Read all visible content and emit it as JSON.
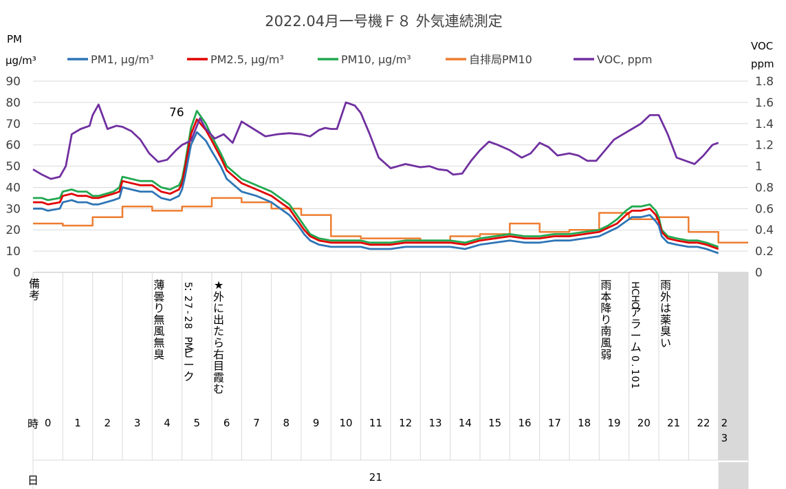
{
  "chart_data": {
    "type": "line",
    "title": "2022.04月一号機Ｆ８ 外気連続測定",
    "y_left": {
      "unit_line1": "PM",
      "unit_line2": "μg/m³",
      "ylim": [
        0,
        90
      ],
      "ticks": [
        "0",
        "10",
        "20",
        "30",
        "40",
        "50",
        "60",
        "70",
        "80",
        "90"
      ]
    },
    "y_right": {
      "unit_line1": "VOC",
      "unit_line2": "ppm",
      "ylim": [
        0,
        1.8
      ],
      "ticks": [
        "0",
        "0.2",
        "0.4",
        "0.6",
        "0.8",
        "1",
        "1.2",
        "1.4",
        "1.6",
        "1.8"
      ]
    },
    "grid": "horizontal",
    "legend_position": "top",
    "series": [
      {
        "name": "PM1, μg/m³",
        "color": "#2e75b6",
        "axis": "left",
        "x": [
          0,
          0.3,
          0.5,
          0.9,
          1.0,
          1.3,
          1.5,
          1.8,
          2.0,
          2.2,
          2.7,
          2.9,
          3.0,
          3.3,
          3.6,
          4.0,
          4.3,
          4.6,
          4.9,
          5.0,
          5.1,
          5.3,
          5.5,
          5.8,
          6.0,
          6.3,
          6.5,
          7.0,
          7.5,
          8.0,
          8.3,
          8.6,
          8.9,
          9.1,
          9.3,
          9.6,
          10.0,
          10.5,
          11.0,
          11.3,
          11.6,
          12.0,
          12.5,
          13.0,
          13.5,
          14.0,
          14.5,
          15.0,
          15.5,
          16.0,
          16.5,
          17.0,
          17.5,
          18.0,
          18.5,
          19.0,
          19.3,
          19.6,
          19.9,
          20.1,
          20.4,
          20.7,
          20.9,
          21.0,
          21.1,
          21.3,
          21.6,
          22.0,
          22.3,
          22.6,
          23.0
        ],
        "y": [
          30,
          30,
          29,
          30,
          33,
          34,
          33,
          33,
          32,
          32,
          34,
          35,
          40,
          39,
          38,
          38,
          35,
          34,
          36,
          39,
          45,
          60,
          66,
          62,
          57,
          50,
          44,
          38,
          36,
          33,
          30,
          27,
          22,
          18,
          15,
          13,
          12,
          12,
          12,
          11,
          11,
          11,
          12,
          12,
          12,
          12,
          11,
          13,
          14,
          15,
          14,
          14,
          15,
          15,
          16,
          17,
          19,
          21,
          24,
          26,
          26,
          27,
          24,
          22,
          17,
          14,
          13,
          12,
          12,
          11,
          9
        ]
      },
      {
        "name": "PM2.5, μg/m³",
        "color": "#e00000",
        "axis": "left",
        "x": [
          0,
          0.3,
          0.5,
          0.9,
          1.0,
          1.3,
          1.5,
          1.8,
          2.0,
          2.2,
          2.7,
          2.9,
          3.0,
          3.3,
          3.6,
          4.0,
          4.3,
          4.6,
          4.9,
          5.0,
          5.1,
          5.3,
          5.5,
          5.8,
          6.0,
          6.3,
          6.5,
          7.0,
          7.5,
          8.0,
          8.3,
          8.6,
          8.9,
          9.1,
          9.3,
          9.6,
          10.0,
          10.5,
          11.0,
          11.3,
          11.6,
          12.0,
          12.5,
          13.0,
          13.5,
          14.0,
          14.5,
          15.0,
          15.5,
          16.0,
          16.5,
          17.0,
          17.5,
          18.0,
          18.5,
          19.0,
          19.3,
          19.6,
          19.9,
          20.1,
          20.4,
          20.7,
          20.9,
          21.0,
          21.1,
          21.3,
          21.6,
          22.0,
          22.3,
          22.6,
          23.0
        ],
        "y": [
          33,
          33,
          32,
          33,
          36,
          37,
          36,
          36,
          35,
          35,
          37,
          38,
          43,
          42,
          41,
          41,
          38,
          37,
          39,
          42,
          49,
          65,
          72,
          67,
          62,
          54,
          48,
          42,
          39,
          36,
          33,
          30,
          24,
          20,
          17,
          15,
          14,
          14,
          14,
          13,
          13,
          13,
          14,
          14,
          14,
          14,
          13,
          15,
          16,
          17,
          16,
          16,
          17,
          17,
          18,
          19,
          21,
          23,
          27,
          29,
          29,
          30,
          27,
          24,
          19,
          16,
          15,
          14,
          14,
          13,
          11
        ]
      },
      {
        "name": "PM10, μg/m³",
        "color": "#21a84f",
        "axis": "left",
        "x": [
          0,
          0.3,
          0.5,
          0.9,
          1.0,
          1.3,
          1.5,
          1.8,
          2.0,
          2.2,
          2.7,
          2.9,
          3.0,
          3.3,
          3.6,
          4.0,
          4.3,
          4.6,
          4.9,
          5.0,
          5.1,
          5.3,
          5.5,
          5.8,
          6.0,
          6.3,
          6.5,
          7.0,
          7.5,
          8.0,
          8.3,
          8.6,
          8.9,
          9.1,
          9.3,
          9.6,
          10.0,
          10.5,
          11.0,
          11.3,
          11.6,
          12.0,
          12.5,
          13.0,
          13.5,
          14.0,
          14.5,
          15.0,
          15.5,
          16.0,
          16.5,
          17.0,
          17.5,
          18.0,
          18.5,
          19.0,
          19.3,
          19.6,
          19.9,
          20.1,
          20.4,
          20.7,
          20.9,
          21.0,
          21.1,
          21.3,
          21.6,
          22.0,
          22.3,
          22.6,
          23.0
        ],
        "y": [
          35,
          35,
          34,
          35,
          38,
          39,
          38,
          38,
          36,
          36,
          38,
          40,
          45,
          44,
          43,
          43,
          40,
          39,
          41,
          44,
          51,
          68,
          76,
          70,
          64,
          56,
          50,
          44,
          41,
          38,
          35,
          32,
          26,
          22,
          18,
          16,
          15,
          15,
          15,
          14,
          14,
          14,
          15,
          15,
          15,
          15,
          14,
          16,
          17,
          18,
          17,
          17,
          18,
          18,
          19,
          20,
          22,
          25,
          29,
          31,
          31,
          32,
          29,
          26,
          20,
          17,
          16,
          15,
          15,
          14,
          12
        ]
      },
      {
        "name": "自排局PM10",
        "color": "#ed7d31",
        "axis": "left",
        "step": true,
        "x": [
          0,
          1,
          2,
          3,
          4,
          5,
          6,
          7,
          8,
          9,
          10,
          11,
          12,
          13,
          14,
          15,
          16,
          17,
          18,
          19,
          20,
          21,
          22,
          23
        ],
        "y": [
          23,
          22,
          26,
          31,
          29,
          31,
          35,
          33,
          30,
          27,
          17,
          16,
          16,
          15,
          17,
          18,
          23,
          19,
          20,
          28,
          25,
          26,
          19,
          14
        ]
      },
      {
        "name": "VOC, ppm",
        "color": "#7030a0",
        "axis": "right",
        "x": [
          0,
          0.3,
          0.6,
          0.9,
          1.1,
          1.3,
          1.6,
          1.9,
          2.0,
          2.2,
          2.5,
          2.8,
          3.0,
          3.3,
          3.6,
          3.9,
          4.2,
          4.5,
          4.8,
          5.0,
          5.3,
          5.6,
          5.8,
          6.1,
          6.4,
          6.7,
          7.0,
          7.4,
          7.8,
          8.2,
          8.6,
          9.0,
          9.3,
          9.6,
          9.8,
          10.0,
          10.2,
          10.5,
          10.8,
          11.0,
          11.3,
          11.6,
          12.0,
          12.5,
          13.0,
          13.3,
          13.6,
          13.9,
          14.1,
          14.4,
          14.7,
          15.0,
          15.3,
          15.6,
          16.0,
          16.4,
          16.7,
          17.0,
          17.3,
          17.6,
          18.0,
          18.3,
          18.6,
          18.9,
          19.2,
          19.5,
          19.8,
          20.1,
          20.4,
          20.7,
          21.0,
          21.3,
          21.6,
          21.9,
          22.2,
          22.5,
          22.8,
          23.0
        ],
        "y": [
          0.97,
          0.92,
          0.88,
          0.9,
          1.0,
          1.3,
          1.35,
          1.38,
          1.48,
          1.58,
          1.35,
          1.38,
          1.37,
          1.33,
          1.25,
          1.12,
          1.04,
          1.06,
          1.15,
          1.2,
          1.24,
          1.45,
          1.35,
          1.26,
          1.3,
          1.22,
          1.42,
          1.35,
          1.28,
          1.3,
          1.31,
          1.3,
          1.28,
          1.34,
          1.36,
          1.35,
          1.35,
          1.6,
          1.57,
          1.5,
          1.3,
          1.08,
          0.98,
          1.02,
          0.99,
          1.0,
          0.97,
          0.96,
          0.92,
          0.93,
          1.05,
          1.15,
          1.23,
          1.2,
          1.15,
          1.08,
          1.12,
          1.22,
          1.18,
          1.1,
          1.12,
          1.1,
          1.05,
          1.05,
          1.15,
          1.25,
          1.3,
          1.35,
          1.4,
          1.48,
          1.48,
          1.3,
          1.08,
          1.05,
          1.02,
          1.1,
          1.2,
          1.22
        ]
      }
    ],
    "annotations": [
      {
        "text": "76",
        "x": 5.3,
        "y": 76
      }
    ],
    "table": {
      "remarks_header": "備考",
      "remarks": [
        {
          "hour": 4,
          "text": "薄曇り無風無臭"
        },
        {
          "hour": 5,
          "text": "5：27-28 PMピーク"
        },
        {
          "hour": 6,
          "text": "★外に出たら右目霞む"
        },
        {
          "hour": 19,
          "text": "雨本降り南風弱"
        },
        {
          "hour": 20,
          "text": "HCHOアラーム0.101"
        },
        {
          "hour": 21,
          "text": "雨外は薬臭い"
        }
      ],
      "hour_header": "時",
      "hours": [
        "0",
        "1",
        "2",
        "3",
        "4",
        "5",
        "6",
        "7",
        "8",
        "9",
        "10",
        "11",
        "12",
        "13",
        "14",
        "15",
        "16",
        "17",
        "18",
        "19",
        "20",
        "21",
        "22",
        "2\n3"
      ],
      "day_header": "日",
      "day": "21"
    }
  }
}
